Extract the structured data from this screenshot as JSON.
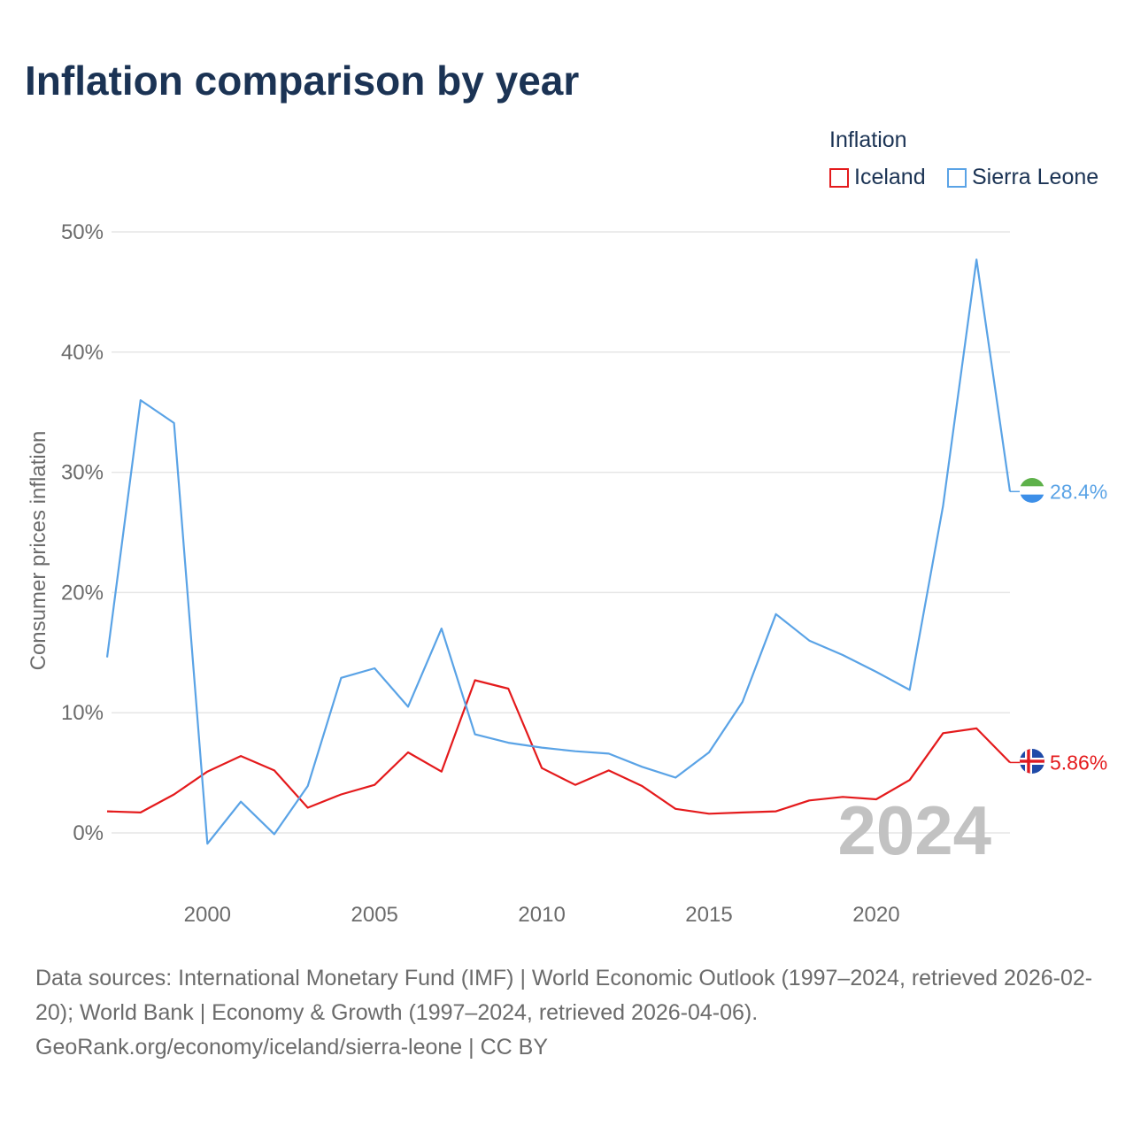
{
  "title": "Inflation comparison by year",
  "legend": {
    "title": "Inflation",
    "items": [
      {
        "label": "Iceland",
        "color": "#e41a1c"
      },
      {
        "label": "Sierra Leone",
        "color": "#5aa3e6"
      }
    ]
  },
  "sources": {
    "text": "Data sources: International Monetary Fund (IMF) | World Economic Outlook (1997–2024, retrieved 2026-02-20); World Bank | Economy & Growth (1997–2024, retrieved 2026-04-06).",
    "url": "GeoRank.org/economy/iceland/sierra-leone | CC BY"
  },
  "chart_data": {
    "type": "line",
    "title": "Inflation comparison by year",
    "xlabel": "",
    "ylabel": "Consumer prices inflation",
    "xlim": [
      1997,
      2024
    ],
    "ylim": [
      -5,
      50
    ],
    "grid": true,
    "legend_placement": "top-right",
    "current_year_label": "2024",
    "x_ticks": [
      2000,
      2005,
      2010,
      2015,
      2020
    ],
    "y_ticks": [
      0,
      10,
      20,
      30,
      40,
      50
    ],
    "y_tick_labels": [
      "0%",
      "10%",
      "20%",
      "30%",
      "40%",
      "50%"
    ],
    "x": [
      1997,
      1998,
      1999,
      2000,
      2001,
      2002,
      2003,
      2004,
      2005,
      2006,
      2007,
      2008,
      2009,
      2010,
      2011,
      2012,
      2013,
      2014,
      2015,
      2016,
      2017,
      2018,
      2019,
      2020,
      2021,
      2022,
      2023,
      2024
    ],
    "series": [
      {
        "name": "Iceland",
        "color": "#e41a1c",
        "end_label": "5.86%",
        "flag": "iceland-flag-icon",
        "values": [
          1.8,
          1.7,
          3.2,
          5.1,
          6.4,
          5.2,
          2.1,
          3.2,
          4.0,
          6.7,
          5.1,
          12.7,
          12.0,
          5.4,
          4.0,
          5.2,
          3.9,
          2.0,
          1.6,
          1.7,
          1.8,
          2.7,
          3.0,
          2.8,
          4.4,
          8.3,
          8.7,
          5.86
        ]
      },
      {
        "name": "Sierra Leone",
        "color": "#5aa3e6",
        "end_label": "28.4%",
        "flag": "sierra-leone-flag-icon",
        "values": [
          14.6,
          36.0,
          34.1,
          -0.9,
          2.6,
          -0.1,
          3.9,
          12.9,
          13.7,
          10.5,
          17.0,
          8.2,
          7.5,
          7.1,
          6.8,
          6.6,
          5.5,
          4.6,
          6.7,
          10.9,
          18.2,
          16.0,
          14.8,
          13.4,
          11.9,
          27.2,
          47.7,
          28.4
        ]
      }
    ]
  }
}
